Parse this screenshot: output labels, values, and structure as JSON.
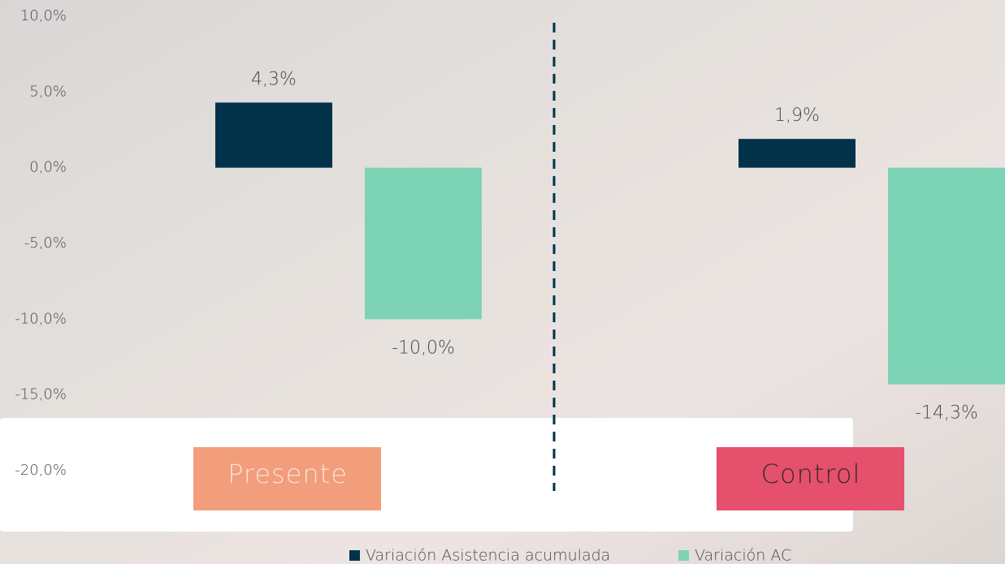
{
  "chart_data": {
    "type": "bar",
    "categories": [
      "Presente",
      "Control"
    ],
    "category_colors": [
      "#f29d7b",
      "#e5506c"
    ],
    "series": [
      {
        "name": "Variación Asistencia acumulada",
        "color": "#01324a",
        "values": [
          4.3,
          1.9
        ],
        "value_labels": [
          "4,3%",
          "1,9%"
        ]
      },
      {
        "name": "Variación AC",
        "color": "#7dd3b6",
        "values": [
          -10.0,
          -14.3
        ],
        "value_labels": [
          "-10,0%",
          "-14,3%"
        ]
      }
    ],
    "ylim": [
      -20,
      10
    ],
    "yticks": [
      {
        "value": 10,
        "label": "10,0%"
      },
      {
        "value": 5,
        "label": "5,0%"
      },
      {
        "value": 0,
        "label": "0,0%"
      },
      {
        "value": -5,
        "label": "-5,0%"
      },
      {
        "value": -10,
        "label": "-10,0%"
      },
      {
        "value": -15,
        "label": "-15,0%"
      },
      {
        "value": -20,
        "label": "-20,0%"
      }
    ]
  }
}
